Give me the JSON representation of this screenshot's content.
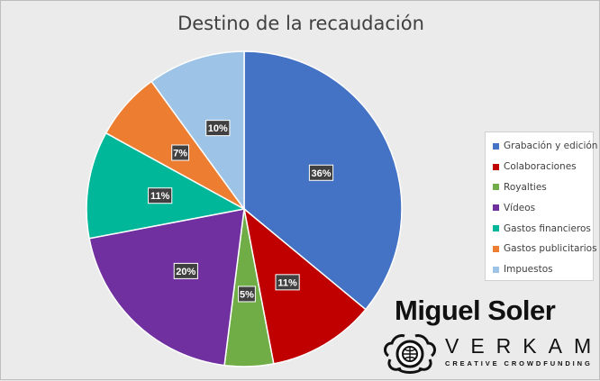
{
  "chart_data": {
    "type": "pie",
    "title": "Destino de la recaudación",
    "categories": [
      "Grabación y edición",
      "Colaboraciones",
      "Royalties",
      "Vídeos",
      "Gastos financieros",
      "Gastos publicitarios",
      "Impuestos"
    ],
    "values": [
      36,
      11,
      5,
      20,
      11,
      7,
      10
    ],
    "data_labels": [
      "36%",
      "11%",
      "5%",
      "20%",
      "11%",
      "7%",
      "10%"
    ],
    "colors": [
      "#4472c4",
      "#c00000",
      "#70ad47",
      "#7030a0",
      "#00b899",
      "#ed7d31",
      "#9dc3e6"
    ],
    "legend_position": "right"
  },
  "brand": {
    "name": "Miguel Soler",
    "platform": "VERKAMI",
    "tagline": "CREATIVE CROWDFUNDING",
    "logo_icon": "verkami-octopus-icon"
  }
}
